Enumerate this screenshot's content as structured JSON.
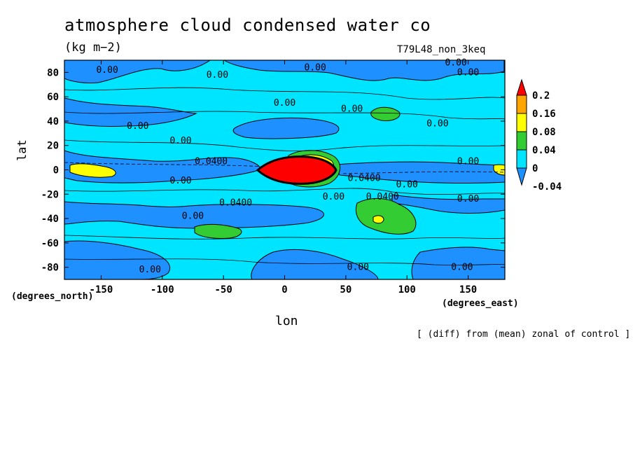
{
  "chart_data": {
    "type": "heatmap",
    "title": "atmosphere cloud condensed water co",
    "units": "(kg m−2)",
    "run_label": "T79L48_non_3keq",
    "xlabel": "lon",
    "ylabel": "lat",
    "x_unit": "(degrees_east)",
    "y_unit": "(degrees_north)",
    "note": "[ (diff) from (mean) zonal of control ]",
    "xlim": [
      -180,
      180
    ],
    "ylim": [
      -90,
      90
    ],
    "x_ticks": [
      "-150",
      "-100",
      "-50",
      "0",
      "50",
      "100",
      "150"
    ],
    "x_tick_values": [
      -150,
      -100,
      -50,
      0,
      50,
      100,
      150
    ],
    "y_ticks": [
      "80",
      "60",
      "40",
      "20",
      "0",
      "-20",
      "-40",
      "-60",
      "-80"
    ],
    "y_tick_values": [
      80,
      60,
      40,
      20,
      0,
      -20,
      -40,
      -60,
      -80
    ],
    "colorbar": {
      "levels": [
        "0.2",
        "0.16",
        "0.08",
        "0.04",
        "0",
        "-0.04"
      ],
      "colors": [
        "#ff0000",
        "#ffa500",
        "#ffff00",
        "#33cc33",
        "#00e5ff",
        "#1e90ff"
      ]
    },
    "contour_labels": [
      {
        "text": "0.00",
        "lon": -145,
        "lat": 82
      },
      {
        "text": "0.00",
        "lon": -55,
        "lat": 78
      },
      {
        "text": "0.00",
        "lon": 25,
        "lat": 84
      },
      {
        "text": "0.00",
        "lon": 140,
        "lat": 88
      },
      {
        "text": "0.00",
        "lon": 150,
        "lat": 80
      },
      {
        "text": "0.00",
        "lon": 0,
        "lat": 55
      },
      {
        "text": "0.00",
        "lon": 55,
        "lat": 50
      },
      {
        "text": "0.00",
        "lon": -120,
        "lat": 36
      },
      {
        "text": "0.00",
        "lon": 125,
        "lat": 38
      },
      {
        "text": "0.00",
        "lon": -85,
        "lat": 24
      },
      {
        "text": "0.0400",
        "lon": -60,
        "lat": 7
      },
      {
        "text": "0.00",
        "lon": 150,
        "lat": 7
      },
      {
        "text": "0.00",
        "lon": -85,
        "lat": -9
      },
      {
        "text": "0.0400",
        "lon": 65,
        "lat": -7
      },
      {
        "text": "0.00",
        "lon": 100,
        "lat": -12
      },
      {
        "text": "0.00",
        "lon": 40,
        "lat": -22
      },
      {
        "text": "0.0400",
        "lon": 80,
        "lat": -22
      },
      {
        "text": "0.00",
        "lon": 150,
        "lat": -24
      },
      {
        "text": "0.0400",
        "lon": -40,
        "lat": -27
      },
      {
        "text": "0.00",
        "lon": -75,
        "lat": -38
      },
      {
        "text": "0.00",
        "lon": -110,
        "lat": -82
      },
      {
        "text": "0.00",
        "lon": 60,
        "lat": -80
      },
      {
        "text": "0.00",
        "lon": 145,
        "lat": -80
      }
    ]
  }
}
